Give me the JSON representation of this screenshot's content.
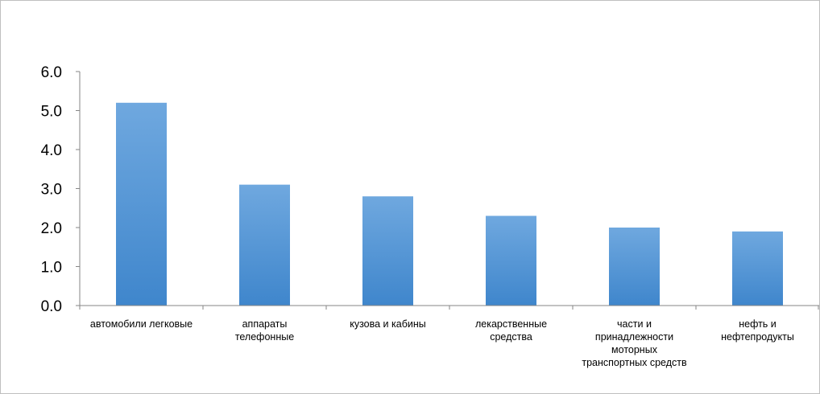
{
  "chart_data": {
    "type": "bar",
    "title": "",
    "xlabel": "",
    "ylabel": "",
    "categories": [
      "автомобили легковые",
      "аппараты телефонные",
      "кузова и кабины",
      "лекарственные средства",
      "части и принадлежности моторных транспортных средств",
      "нефть и нефтепродукты"
    ],
    "category_lines": [
      [
        "автомобили легковые"
      ],
      [
        "аппараты",
        "телефонные"
      ],
      [
        "кузова и кабины"
      ],
      [
        "лекарственные",
        "средства"
      ],
      [
        "части и",
        "принадлежности",
        "моторных",
        "транспортных средств"
      ],
      [
        "нефть и",
        "нефтепродукты"
      ]
    ],
    "values": [
      5.2,
      3.1,
      2.8,
      2.3,
      2.0,
      1.9
    ],
    "ylim": [
      0,
      6
    ],
    "yticks": [
      "0.0",
      "1.0",
      "2.0",
      "3.0",
      "4.0",
      "5.0",
      "6.0"
    ],
    "grid": false,
    "legend": "none",
    "colors": {
      "bar_top": "#6fa8df",
      "bar_bottom": "#3f86cc",
      "axis": "#868686"
    }
  }
}
